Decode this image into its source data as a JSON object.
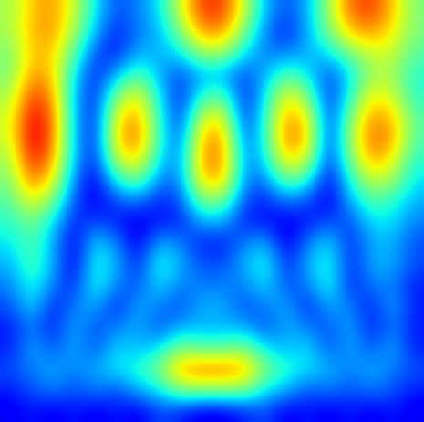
{
  "chart_data": {
    "type": "heatmap",
    "tick_labels": false,
    "color_range": [
      0,
      1
    ],
    "cells": [
      [
        0.55,
        0.7,
        0.75,
        0.6,
        0.35,
        0.2,
        0.25,
        0.35,
        0.6,
        0.85,
        0.85,
        0.6,
        0.3,
        0.2,
        0.3,
        0.55,
        0.8,
        0.85,
        0.7,
        0.5
      ],
      [
        0.55,
        0.72,
        0.75,
        0.55,
        0.3,
        0.15,
        0.25,
        0.3,
        0.5,
        0.75,
        0.75,
        0.5,
        0.25,
        0.15,
        0.3,
        0.5,
        0.7,
        0.75,
        0.65,
        0.5
      ],
      [
        0.5,
        0.7,
        0.7,
        0.45,
        0.2,
        0.15,
        0.3,
        0.3,
        0.35,
        0.55,
        0.55,
        0.35,
        0.25,
        0.25,
        0.3,
        0.35,
        0.5,
        0.6,
        0.6,
        0.45
      ],
      [
        0.5,
        0.75,
        0.7,
        0.35,
        0.15,
        0.3,
        0.45,
        0.3,
        0.2,
        0.3,
        0.3,
        0.2,
        0.3,
        0.45,
        0.35,
        0.2,
        0.35,
        0.55,
        0.55,
        0.4
      ],
      [
        0.55,
        0.85,
        0.75,
        0.3,
        0.15,
        0.5,
        0.65,
        0.35,
        0.15,
        0.4,
        0.45,
        0.15,
        0.35,
        0.65,
        0.5,
        0.15,
        0.4,
        0.65,
        0.6,
        0.4
      ],
      [
        0.6,
        0.92,
        0.8,
        0.3,
        0.15,
        0.65,
        0.75,
        0.4,
        0.15,
        0.6,
        0.65,
        0.15,
        0.4,
        0.75,
        0.65,
        0.15,
        0.5,
        0.75,
        0.7,
        0.45
      ],
      [
        0.6,
        0.95,
        0.8,
        0.3,
        0.15,
        0.7,
        0.8,
        0.4,
        0.2,
        0.72,
        0.75,
        0.2,
        0.4,
        0.8,
        0.7,
        0.15,
        0.55,
        0.8,
        0.75,
        0.45
      ],
      [
        0.55,
        0.9,
        0.75,
        0.3,
        0.15,
        0.6,
        0.7,
        0.35,
        0.25,
        0.75,
        0.78,
        0.25,
        0.35,
        0.7,
        0.6,
        0.15,
        0.5,
        0.75,
        0.65,
        0.4
      ],
      [
        0.5,
        0.8,
        0.65,
        0.25,
        0.1,
        0.4,
        0.5,
        0.25,
        0.25,
        0.7,
        0.72,
        0.25,
        0.25,
        0.5,
        0.4,
        0.1,
        0.4,
        0.6,
        0.55,
        0.35
      ],
      [
        0.45,
        0.65,
        0.5,
        0.2,
        0.1,
        0.2,
        0.25,
        0.15,
        0.2,
        0.5,
        0.5,
        0.2,
        0.15,
        0.25,
        0.2,
        0.1,
        0.3,
        0.45,
        0.4,
        0.3
      ],
      [
        0.4,
        0.5,
        0.35,
        0.15,
        0.2,
        0.15,
        0.1,
        0.15,
        0.15,
        0.3,
        0.3,
        0.15,
        0.15,
        0.1,
        0.15,
        0.2,
        0.2,
        0.35,
        0.35,
        0.25
      ],
      [
        0.35,
        0.45,
        0.3,
        0.1,
        0.35,
        0.25,
        0.1,
        0.3,
        0.25,
        0.15,
        0.15,
        0.25,
        0.3,
        0.1,
        0.25,
        0.35,
        0.15,
        0.3,
        0.3,
        0.2
      ],
      [
        0.3,
        0.45,
        0.3,
        0.1,
        0.4,
        0.3,
        0.15,
        0.4,
        0.3,
        0.2,
        0.2,
        0.3,
        0.4,
        0.15,
        0.3,
        0.4,
        0.15,
        0.3,
        0.3,
        0.2
      ],
      [
        0.25,
        0.4,
        0.25,
        0.15,
        0.4,
        0.25,
        0.2,
        0.35,
        0.25,
        0.25,
        0.25,
        0.25,
        0.35,
        0.2,
        0.25,
        0.4,
        0.15,
        0.25,
        0.25,
        0.15
      ],
      [
        0.2,
        0.35,
        0.15,
        0.25,
        0.3,
        0.15,
        0.3,
        0.25,
        0.2,
        0.3,
        0.3,
        0.2,
        0.25,
        0.3,
        0.15,
        0.3,
        0.25,
        0.15,
        0.3,
        0.15
      ],
      [
        0.15,
        0.25,
        0.15,
        0.3,
        0.2,
        0.25,
        0.3,
        0.2,
        0.3,
        0.3,
        0.3,
        0.3,
        0.2,
        0.3,
        0.25,
        0.2,
        0.3,
        0.15,
        0.25,
        0.15
      ],
      [
        0.15,
        0.3,
        0.2,
        0.3,
        0.2,
        0.35,
        0.3,
        0.35,
        0.5,
        0.45,
        0.45,
        0.5,
        0.35,
        0.3,
        0.35,
        0.2,
        0.3,
        0.2,
        0.3,
        0.15
      ],
      [
        0.2,
        0.25,
        0.3,
        0.25,
        0.3,
        0.35,
        0.4,
        0.5,
        0.75,
        0.8,
        0.8,
        0.75,
        0.5,
        0.4,
        0.35,
        0.3,
        0.25,
        0.3,
        0.25,
        0.2
      ],
      [
        0.15,
        0.2,
        0.25,
        0.2,
        0.25,
        0.2,
        0.3,
        0.35,
        0.5,
        0.5,
        0.5,
        0.5,
        0.35,
        0.3,
        0.2,
        0.25,
        0.2,
        0.25,
        0.2,
        0.15
      ],
      [
        0.1,
        0.15,
        0.1,
        0.15,
        0.1,
        0.15,
        0.1,
        0.2,
        0.15,
        0.1,
        0.1,
        0.15,
        0.2,
        0.1,
        0.15,
        0.1,
        0.15,
        0.1,
        0.15,
        0.1
      ]
    ]
  }
}
